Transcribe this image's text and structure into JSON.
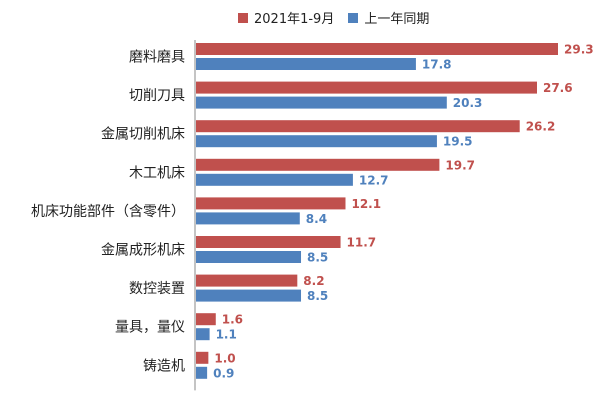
{
  "chart_data": {
    "type": "bar",
    "orientation": "horizontal",
    "categories": [
      "磨料磨具",
      "切削刀具",
      "金属切削机床",
      "木工机床",
      "机床功能部件（含零件）",
      "金属成形机床",
      "数控装置",
      "量具，量仪",
      "铸造机"
    ],
    "series": [
      {
        "name": "2021年1-9月",
        "values": [
          29.3,
          27.6,
          26.2,
          19.7,
          12.1,
          11.7,
          8.2,
          1.6,
          1.0
        ],
        "color": "#c0504d"
      },
      {
        "name": "上一年同期",
        "values": [
          17.8,
          20.3,
          19.5,
          12.7,
          8.4,
          8.5,
          8.5,
          1.1,
          0.9
        ],
        "color": "#4f81bd"
      }
    ],
    "value_labels": {
      "series0": [
        "29.3",
        "27.6",
        "26.2",
        "19.7",
        "12.1",
        "11.7",
        "8.2",
        "1.6",
        "1.0"
      ],
      "series1": [
        "17.8",
        "20.3",
        "19.5",
        "12.7",
        "8.4",
        "8.5",
        "8.5",
        "1.1",
        "0.9"
      ]
    },
    "xlim": [
      0,
      29.3
    ],
    "grid": false,
    "legend_position": "top",
    "title": "",
    "xlabel": "",
    "ylabel": ""
  }
}
